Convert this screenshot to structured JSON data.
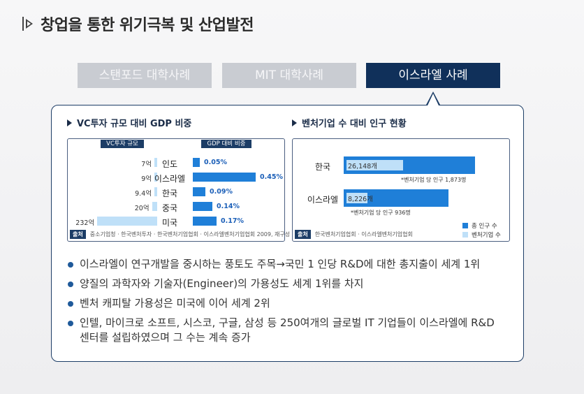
{
  "page": {
    "title": "창업을 통한 위기극복 및 산업발전"
  },
  "tabs": [
    {
      "label": "스탠포드 대학사례",
      "active": false
    },
    {
      "label": "MIT 대학사례",
      "active": false
    },
    {
      "label": "이스라엘 사례",
      "active": true
    }
  ],
  "left_section": {
    "heading": "VC투자 규모 대비 GDP 비중",
    "col_vc": "VC투자 규모",
    "col_gdp": "GDP 대비 비중",
    "source_label": "출처",
    "source_text": "중소기업청 · 한국벤처투자 · 한국벤처기업협회 · 이스라엘벤처기업협회 2009, 재구성"
  },
  "right_section": {
    "heading": "벤처기업 수 대비 인구 현황",
    "source_label": "출처",
    "source_text": "한국벤처기업협회 · 이스라엘벤처기업협회",
    "legend": [
      "총 인구 수",
      "벤처기업 수"
    ]
  },
  "chart_data": [
    {
      "type": "bar",
      "categories": [
        "인도",
        "이스라엘",
        "한국",
        "중국",
        "미국"
      ],
      "series": [
        {
          "name": "VC투자 규모",
          "values": [
            7,
            9,
            9.4,
            20,
            232
          ],
          "labels": [
            "7억",
            "9억",
            "9.4억",
            "20억",
            "232억"
          ]
        },
        {
          "name": "GDP 대비 비중",
          "values": [
            0.05,
            0.45,
            0.09,
            0.14,
            0.17
          ],
          "labels": [
            "0.05%",
            "0.45%",
            "0.09%",
            "0.14%",
            "0.17%"
          ]
        }
      ]
    },
    {
      "type": "bar",
      "categories": [
        "한국",
        "이스라엘"
      ],
      "series": [
        {
          "name": "총 인구 수"
        },
        {
          "name": "벤처기업 수",
          "values": [
            26148,
            8226
          ],
          "labels": [
            "26,148개",
            "8,226개"
          ]
        }
      ],
      "annotations": [
        "*벤처기업 당 인구 1,873명",
        "*벤처기업 당 인구 936명"
      ]
    }
  ],
  "bullets": [
    "이스라엘이 연구개발을 중시하는 풍토도 주목→국민 1 인당 R&D에 대한 총지출이 세계 1위",
    "양질의 과학자와 기술자(Engineer)의 가용성도 세계 1위를 차지",
    "벤처 캐피탈 가용성은 미국에 이어 세계 2위",
    "인텔, 마이크로 소프트, 시스코, 구글, 삼성 등 250여개의 글로벌 IT 기업들이 이스라엘에 R&D센터를 설립하였으며 그 수는 계속 증가"
  ],
  "colors": {
    "navy": "#1c3d66",
    "bar_dark": "#1f7fd8",
    "bar_light": "#bfe0f8",
    "tab_inactive": "#c9ccd2"
  }
}
